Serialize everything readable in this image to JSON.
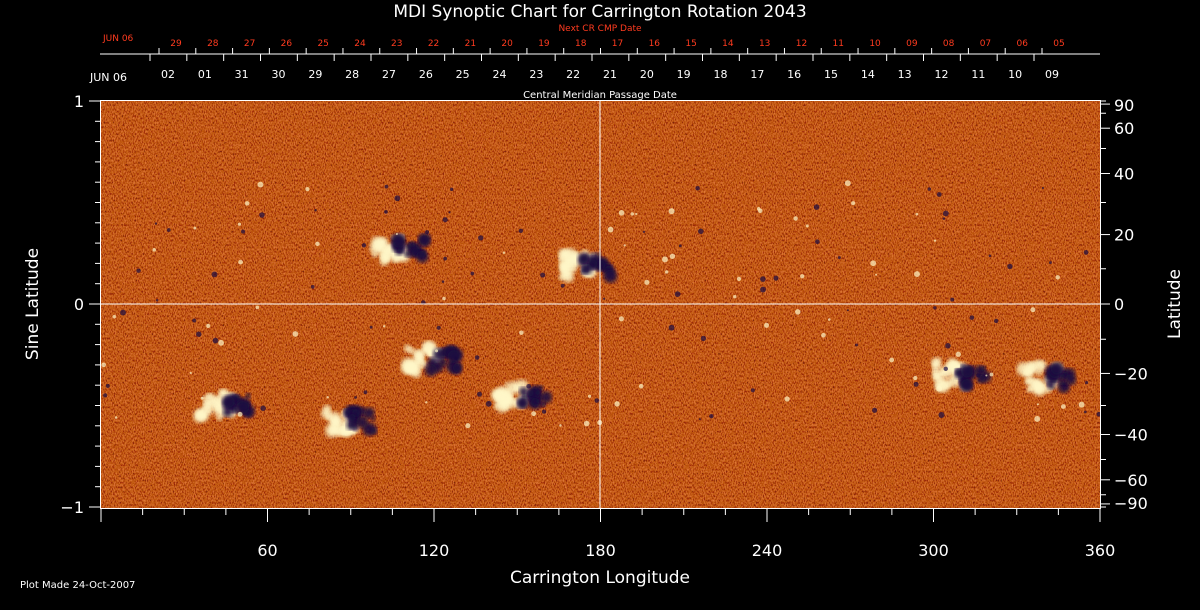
{
  "chart_data": {
    "type": "heatmap",
    "title": "MDI Synoptic Chart for Carrington Rotation 2043",
    "xlabel": "Carrington Longitude",
    "ylabel_left": "Sine Latitude",
    "ylabel_right": "Latitude",
    "xlim": [
      0,
      360
    ],
    "ylim": [
      -1,
      1
    ],
    "x_ticks": [
      60,
      120,
      180,
      240,
      300,
      360
    ],
    "y_ticks_left": [
      {
        "value": 1,
        "label": "1"
      },
      {
        "value": 0,
        "label": "0"
      },
      {
        "value": -1,
        "label": "−1"
      }
    ],
    "y_ticks_right_deg": [
      {
        "deg": 90,
        "label": "90"
      },
      {
        "deg": 60,
        "label": "60"
      },
      {
        "deg": 40,
        "label": "40"
      },
      {
        "deg": 20,
        "label": "20"
      },
      {
        "deg": 0,
        "label": "0"
      },
      {
        "deg": -20,
        "label": "−20"
      },
      {
        "deg": -40,
        "label": "−40"
      },
      {
        "deg": -60,
        "label": "−60"
      },
      {
        "deg": -90,
        "label": "−90"
      }
    ],
    "top_axis_label": "Central Meridian Passage Date",
    "top_axis_start": "JUN 06",
    "top_axis_dates": [
      "02",
      "01",
      "31",
      "30",
      "29",
      "28",
      "27",
      "26",
      "25",
      "24",
      "23",
      "22",
      "21",
      "20",
      "19",
      "18",
      "17",
      "16",
      "15",
      "14",
      "13",
      "12",
      "11",
      "10",
      "09"
    ],
    "next_cr_label": "Next CR CMP Date",
    "next_cr_start": "JUN 06",
    "next_cr_dates": [
      "29",
      "28",
      "27",
      "26",
      "25",
      "24",
      "23",
      "22",
      "21",
      "20",
      "19",
      "18",
      "17",
      "16",
      "15",
      "14",
      "13",
      "12",
      "11",
      "10",
      "09",
      "08",
      "07",
      "06",
      "05"
    ],
    "colors": {
      "background": "#d8501c",
      "positive": "#fff7c8",
      "negative": "#1a0a40",
      "accent_red": "#ff3b1f"
    },
    "active_regions": [
      {
        "lon": 108,
        "sinlat": 0.27,
        "polarity": "mixed"
      },
      {
        "lon": 175,
        "sinlat": 0.19,
        "polarity": "mixed"
      },
      {
        "lon": 120,
        "sinlat": -0.28,
        "polarity": "mixed"
      },
      {
        "lon": 152,
        "sinlat": -0.45,
        "polarity": "mixed"
      },
      {
        "lon": 90,
        "sinlat": -0.58,
        "polarity": "mixed"
      },
      {
        "lon": 45,
        "sinlat": -0.5,
        "polarity": "mixed"
      },
      {
        "lon": 310,
        "sinlat": -0.35,
        "polarity": "mixed"
      },
      {
        "lon": 342,
        "sinlat": -0.36,
        "polarity": "mixed"
      }
    ]
  },
  "footer": {
    "plot_made": "Plot Made 24-Oct-2007"
  }
}
